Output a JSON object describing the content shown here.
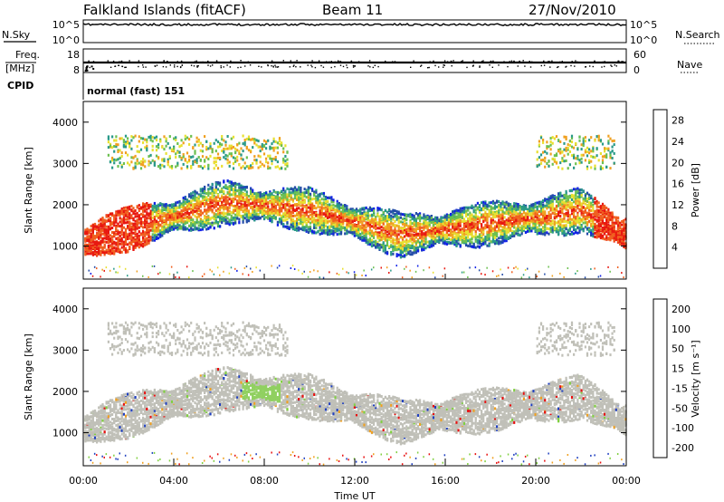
{
  "header": {
    "station": "Falkland Islands (fitACF)",
    "beam": "Beam 11",
    "date": "27/Nov/2010"
  },
  "strip_panels": {
    "sky_label": "N.Sky",
    "sky_ticks": [
      "10^5",
      "10^0"
    ],
    "search_label": "N.Search",
    "search_ticks": [
      "10^5",
      "10^0"
    ],
    "freq_label_1": "Freq.",
    "freq_label_2": "[MHz]",
    "freq_ticks": [
      "18",
      "8"
    ],
    "nave_label": "Nave",
    "nave_ticks": [
      "60",
      "0"
    ],
    "cpid_label": "CPID",
    "cpid_value": "normal (fast) 151"
  },
  "chart_data": [
    {
      "type": "heatmap",
      "name": "power",
      "ylabel": "Slant Range [km]",
      "xlabel": "",
      "yticks": [
        "1000",
        "2000",
        "3000",
        "4000"
      ],
      "ylim": [
        200,
        4500
      ],
      "xlim": [
        "00:00",
        "24:00"
      ],
      "colorbar": {
        "label": "Power [dB]",
        "ticks": [
          "4",
          "8",
          "12",
          "16",
          "20",
          "24",
          "28"
        ],
        "range": [
          0,
          30
        ],
        "colors": [
          "#1020e8",
          "#244ca8",
          "#2a9a88",
          "#6cc050",
          "#e8e030",
          "#f0a020",
          "#f06020",
          "#e81810"
        ]
      }
    },
    {
      "type": "heatmap",
      "name": "velocity",
      "ylabel": "Slant Range [km]",
      "xlabel": "Time UT",
      "yticks": [
        "1000",
        "2000",
        "3000",
        "4000"
      ],
      "ylim": [
        200,
        4500
      ],
      "xticks": [
        "00:00",
        "04:00",
        "08:00",
        "12:00",
        "16:00",
        "20:00",
        "00:00"
      ],
      "colorbar": {
        "label": "Velocity [m s⁻¹]",
        "ticks": [
          "200",
          "100",
          "50",
          "15",
          "-15",
          "-50",
          "-100",
          "-200"
        ],
        "range": [
          -250,
          250
        ],
        "colors": [
          "#e81010",
          "#f05010",
          "#f0a020",
          "#c8c8c0",
          "#c8c8c0",
          "#80d040",
          "#309040",
          "#2040c0"
        ]
      }
    }
  ],
  "colors": {
    "ground_scatter": "#c0c0b8"
  }
}
